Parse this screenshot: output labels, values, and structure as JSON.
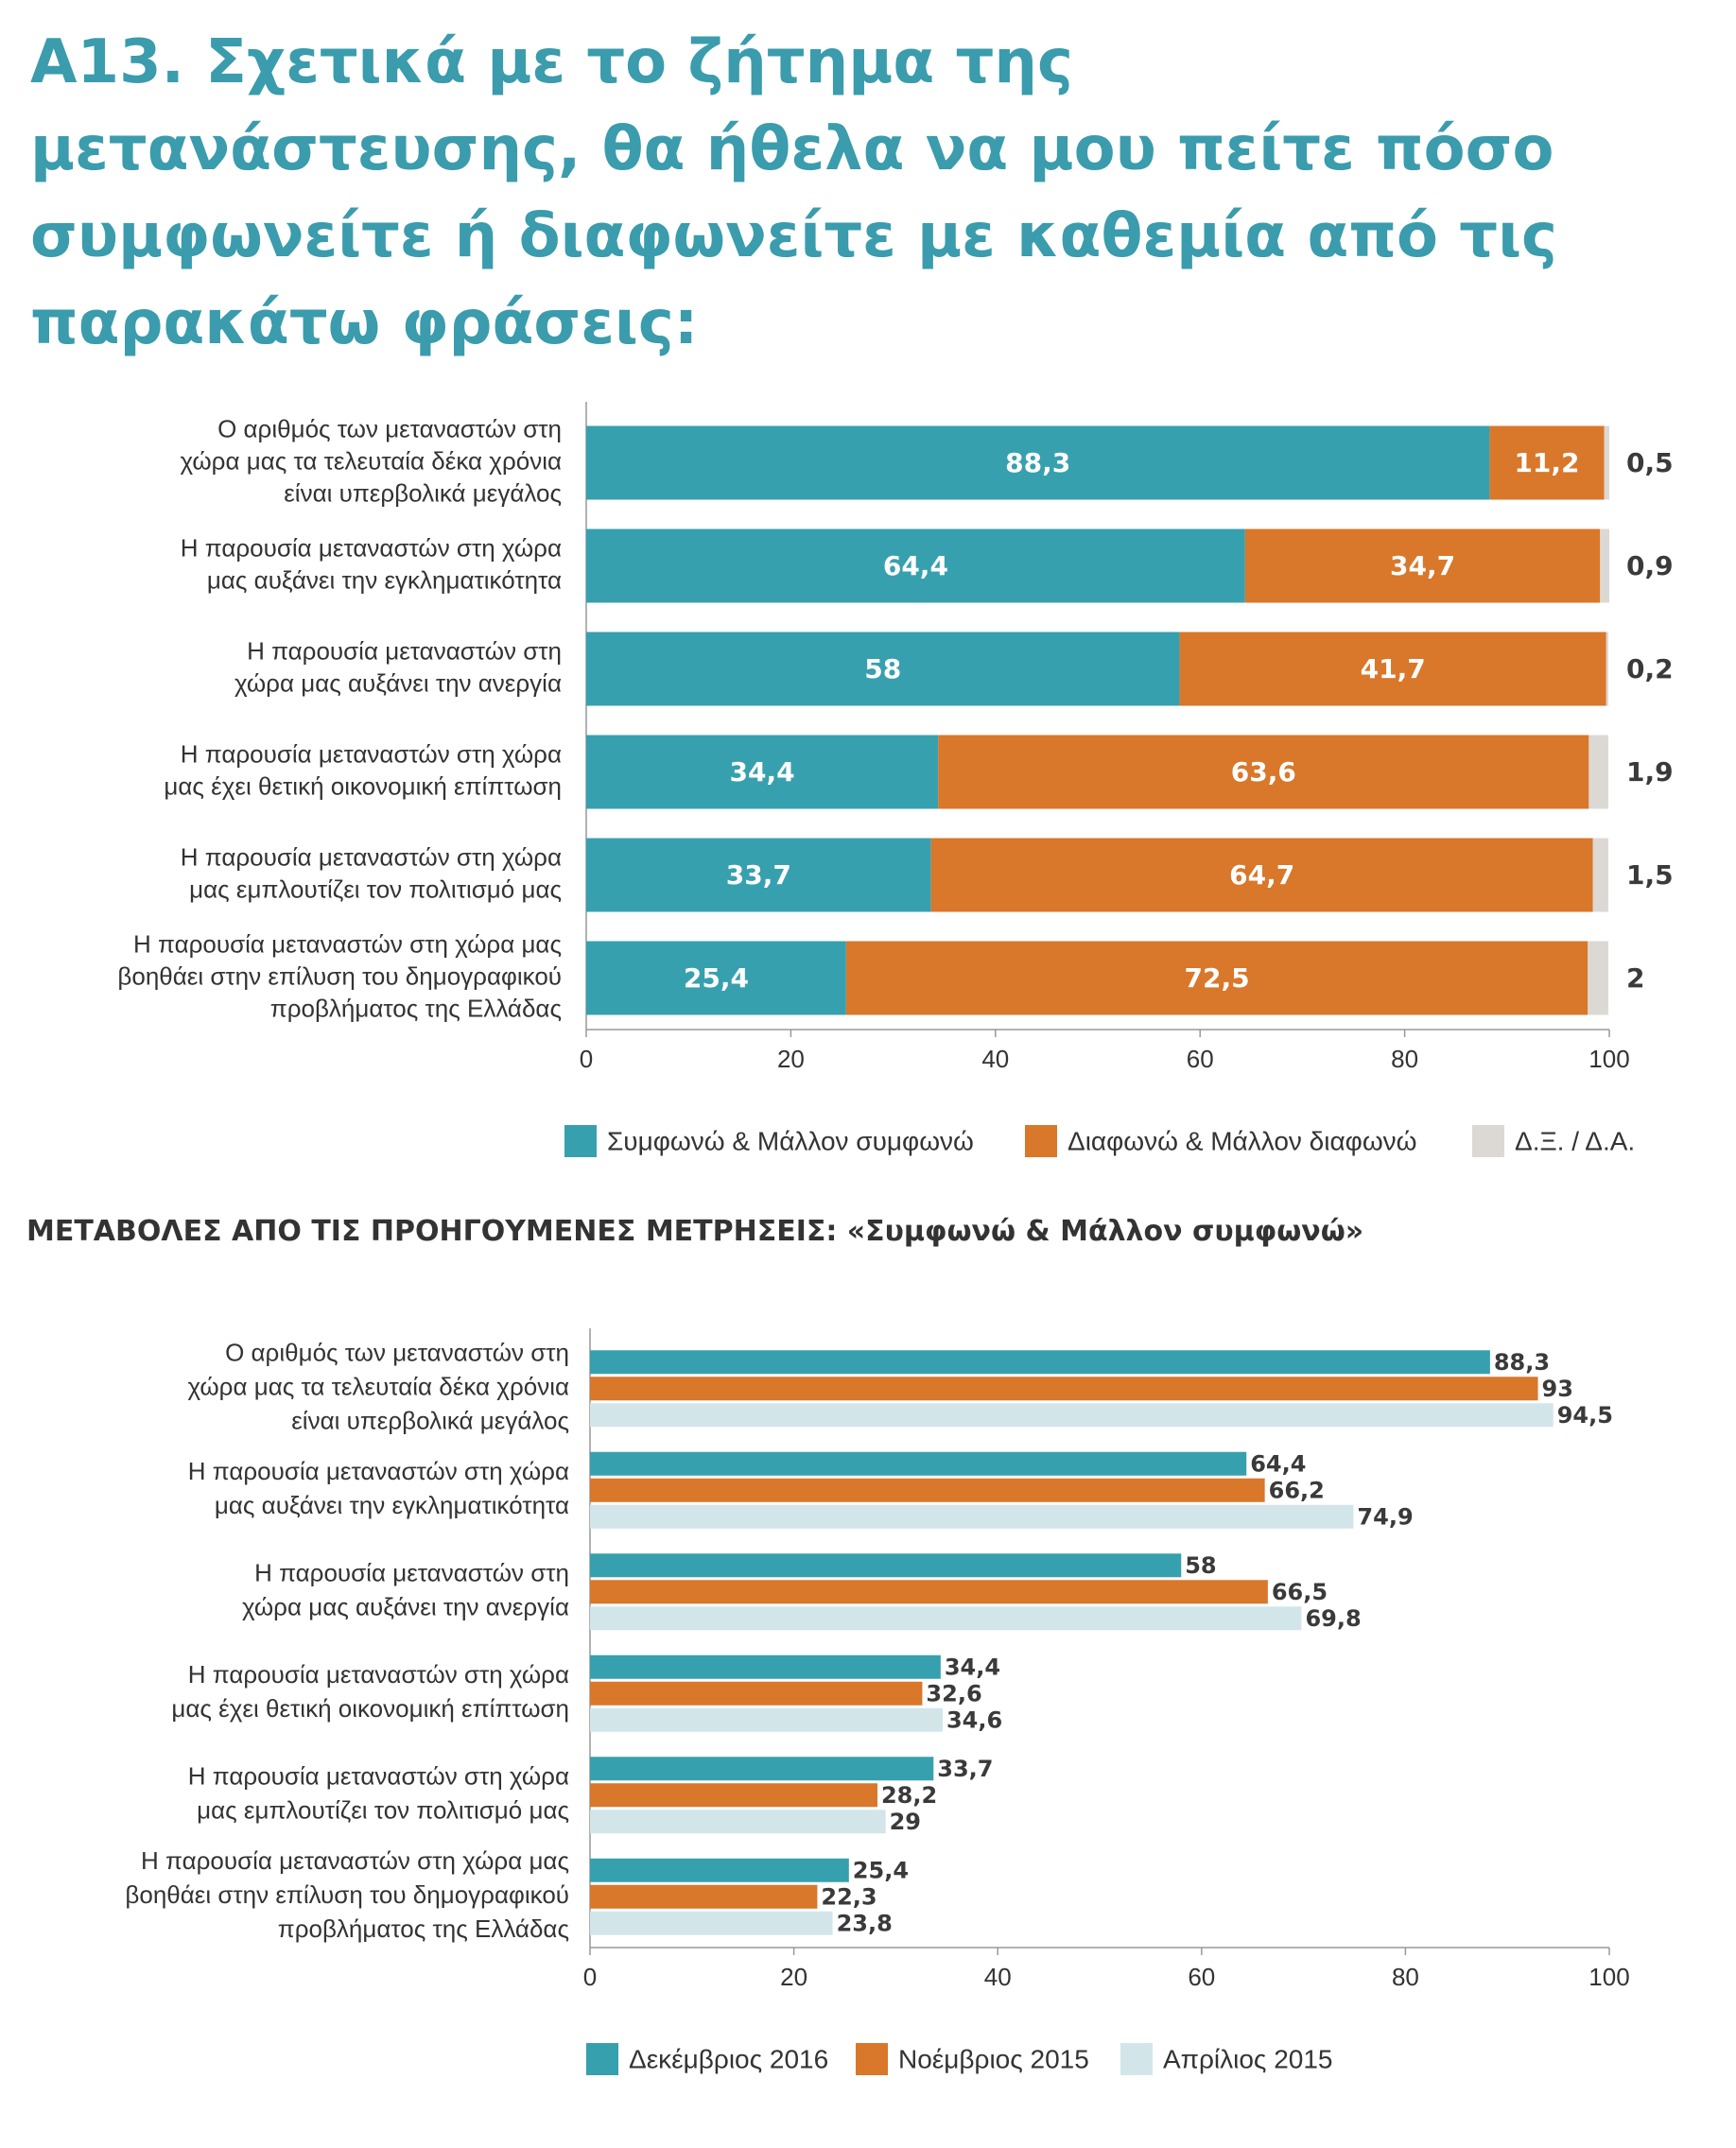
{
  "title": "A13. Σχετικά με το ζήτημα της μετανάστευσης, θα ήθελα να μου πείτε πόσο συμφωνείτε ή διαφωνείτε με καθεμία από τις παρακάτω φράσεις:",
  "chart_data": [
    {
      "type": "bar",
      "orientation": "horizontal",
      "stacked": true,
      "title": "",
      "categories": [
        [
          "Ο αριθμός των μεταναστών στη",
          "χώρα μας τα τελευταία δέκα χρόνια",
          "είναι υπερβολικά μεγάλος"
        ],
        [
          "Η παρουσία μεταναστών στη χώρα",
          "μας αυξάνει την εγκληματικότητα"
        ],
        [
          "Η παρουσία μεταναστών στη",
          "χώρα μας αυξάνει την ανεργία"
        ],
        [
          "Η παρουσία μεταναστών στη χώρα",
          "μας έχει θετική οικονομική επίπτωση"
        ],
        [
          "Η παρουσία μεταναστών στη χώρα",
          "μας εμπλουτίζει τον πολιτισμό μας"
        ],
        [
          "Η παρουσία μεταναστών στη χώρα μας",
          "βοηθάει στην επίλυση του δημογραφικού",
          "προβλήματος της Ελλάδας"
        ]
      ],
      "series": [
        {
          "name": "Συμφωνώ & Μάλλον συμφωνώ",
          "color": "#37a0ae",
          "values": [
            88.3,
            64.4,
            58,
            34.4,
            33.7,
            25.4
          ],
          "labels": [
            "88,3",
            "64,4",
            "58",
            "34,4",
            "33,7",
            "25,4"
          ]
        },
        {
          "name": "Διαφωνώ & Μάλλον διαφωνώ",
          "color": "#d9772a",
          "values": [
            11.2,
            34.7,
            41.7,
            63.6,
            64.7,
            72.5
          ],
          "labels": [
            "11,2",
            "34,7",
            "41,7",
            "63,6",
            "64,7",
            "72,5"
          ]
        },
        {
          "name": "Δ.Ξ. / Δ.Α.",
          "color": "#dcd8d4",
          "values": [
            0.5,
            0.9,
            0.2,
            1.9,
            1.5,
            2
          ],
          "labels": [
            "0,5",
            "0,9",
            "0,2",
            "1,9",
            "1,5",
            "2"
          ]
        }
      ],
      "xlim": [
        0,
        100
      ],
      "xticks": [
        "0",
        "20",
        "40",
        "60",
        "80",
        "100"
      ],
      "legend_position": "bottom",
      "grid": false
    },
    {
      "type": "bar",
      "orientation": "horizontal",
      "stacked": false,
      "title": "ΜΕΤΑΒΟΛΕΣ ΑΠΟ ΤΙΣ ΠΡΟΗΓΟΥΜΕΝΕΣ ΜΕΤΡΗΣΕΙΣ: «Συμφωνώ & Μάλλον συμφωνώ»",
      "categories": [
        [
          "Ο αριθμός των μεταναστών στη",
          "χώρα μας τα τελευταία δέκα χρόνια",
          "είναι υπερβολικά μεγάλος"
        ],
        [
          "Η παρουσία μεταναστών στη χώρα",
          "μας αυξάνει την εγκληματικότητα"
        ],
        [
          "Η παρουσία μεταναστών στη",
          "χώρα μας αυξάνει την ανεργία"
        ],
        [
          "Η παρουσία μεταναστών στη χώρα",
          "μας έχει θετική οικονομική επίπτωση"
        ],
        [
          "Η παρουσία μεταναστών στη χώρα",
          "μας εμπλουτίζει τον πολιτισμό μας"
        ],
        [
          "Η παρουσία μεταναστών στη χώρα μας",
          "βοηθάει στην επίλυση του δημογραφικού",
          "προβλήματος της Ελλάδας"
        ]
      ],
      "series": [
        {
          "name": "Δεκέμβριος 2016",
          "color": "#37a0ae",
          "values": [
            88.3,
            64.4,
            58,
            34.4,
            33.7,
            25.4
          ],
          "labels": [
            "88,3",
            "64,4",
            "58",
            "34,4",
            "33,7",
            "25,4"
          ]
        },
        {
          "name": "Νοέμβριος 2015",
          "color": "#d9772a",
          "values": [
            93,
            66.2,
            66.5,
            32.6,
            28.2,
            22.3
          ],
          "labels": [
            "93",
            "66,2",
            "66,5",
            "32,6",
            "28,2",
            "22,3"
          ]
        },
        {
          "name": "Απρίλιος 2015",
          "color": "#d2e6ea",
          "values": [
            94.5,
            74.9,
            69.8,
            34.6,
            29,
            23.8
          ],
          "labels": [
            "94,5",
            "74,9",
            "69,8",
            "34,6",
            "29",
            "23,8"
          ]
        }
      ],
      "xlim": [
        0,
        100
      ],
      "xticks": [
        "0",
        "20",
        "40",
        "60",
        "80",
        "100"
      ],
      "legend_position": "bottom",
      "grid": false
    }
  ]
}
